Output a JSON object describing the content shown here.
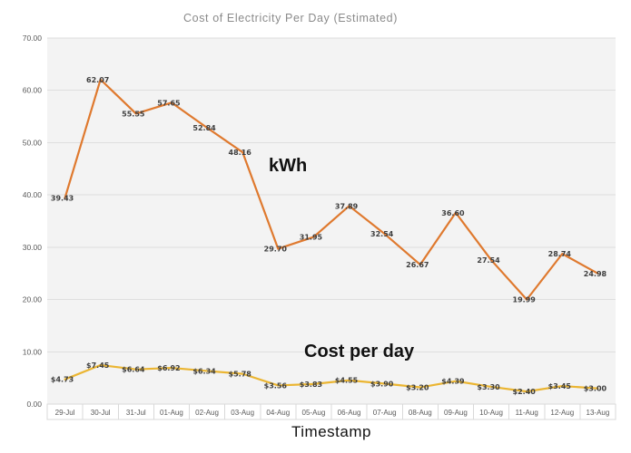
{
  "chart_data": {
    "type": "line",
    "title": "Cost of Electricity Per Day (Estimated)",
    "xlabel": "Timestamp",
    "ylabel": "",
    "ylim": [
      0,
      70
    ],
    "ytick_step": 10,
    "ytick_labels": [
      "70.00",
      "60.00",
      "50.00",
      "40.00",
      "30.00",
      "20.00",
      "10.00",
      "0.00"
    ],
    "grid": true,
    "legend_position": "inline-text-annotations",
    "categories": [
      "29-Jul",
      "30-Jul",
      "31-Jul",
      "01-Aug",
      "02-Aug",
      "03-Aug",
      "04-Aug",
      "05-Aug",
      "06-Aug",
      "07-Aug",
      "08-Aug",
      "09-Aug",
      "10-Aug",
      "11-Aug",
      "12-Aug",
      "13-Aug"
    ],
    "series": [
      {
        "name": "kWh",
        "color": "#df792e",
        "values": [
          39.43,
          62.07,
          55.55,
          57.65,
          52.84,
          48.16,
          29.7,
          31.95,
          37.89,
          32.54,
          26.67,
          36.6,
          27.54,
          19.99,
          28.74,
          24.98
        ],
        "labels": [
          "39.43",
          "62.07",
          "55.55",
          "57.65",
          "52.84",
          "48.16",
          "29.70",
          "31.95",
          "37.89",
          "32.54",
          "26.67",
          "36.60",
          "27.54",
          "19.99",
          "28.74",
          "24.98"
        ]
      },
      {
        "name": "Cost per day",
        "color": "#ebb531",
        "values": [
          4.73,
          7.45,
          6.64,
          6.92,
          6.34,
          5.78,
          3.56,
          3.83,
          4.55,
          3.9,
          3.2,
          4.39,
          3.3,
          2.4,
          3.45,
          3.0
        ],
        "labels": [
          "$4.73",
          "$7.45",
          "$6.64",
          "$6.92",
          "$6.34",
          "$5.78",
          "$3.56",
          "$3.83",
          "$4.55",
          "$3.90",
          "$3.20",
          "$4.39",
          "$3.30",
          "$2.40",
          "$3.45",
          "$3.00"
        ]
      }
    ],
    "annotations": [
      {
        "text": "kWh"
      },
      {
        "text": "Cost per day"
      }
    ],
    "colors": {
      "plot_bg": "#f3f3f3",
      "grid": "#dedede",
      "axis_border": "#d9d9d9",
      "axis_text": "#595959",
      "data_label_text": "#3d3d3d",
      "title_text": "#8a8a8a"
    }
  }
}
